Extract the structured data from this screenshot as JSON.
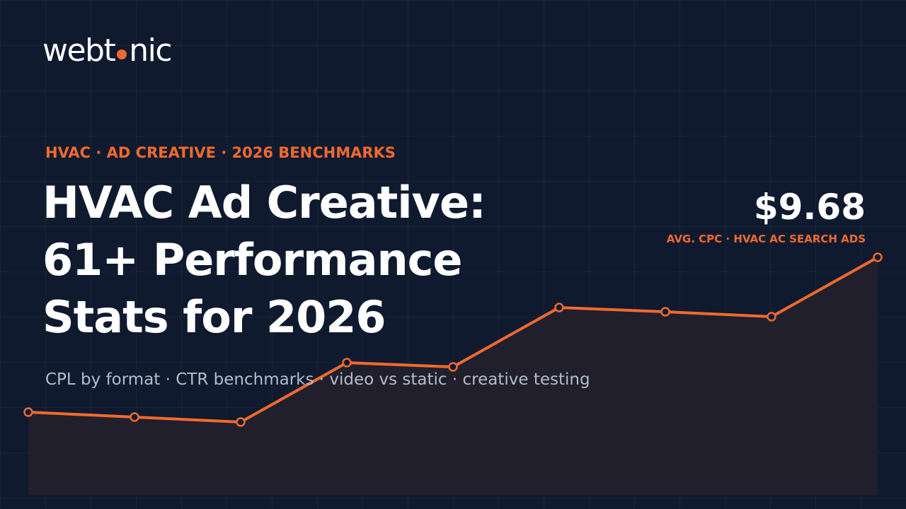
{
  "brand": {
    "logo_start": "webt",
    "logo_end": "nic"
  },
  "hero": {
    "kicker": "HVAC · AD CREATIVE · 2026 BENCHMARKS",
    "title_lines": [
      "HVAC Ad Creative:",
      "61+ Performance",
      "Stats for 2026"
    ],
    "subtitle": "CPL by format · CTR benchmarks · video vs static · creative testing"
  },
  "stat": {
    "value": "$9.68",
    "caption": "AVG. CPC · HVAC AC SEARCH ADS"
  }
}
